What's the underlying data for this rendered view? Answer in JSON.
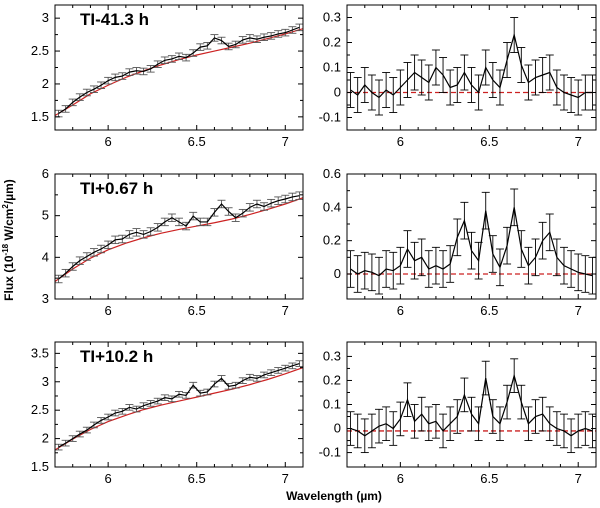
{
  "figure": {
    "xlabel": "Wavelength (µm)",
    "ylabel_prefix": "Flux (10",
    "ylabel_exp": "-18",
    "ylabel_mid": " W/cm",
    "ylabel_sq": "2",
    "ylabel_suffix": "/µm)"
  },
  "colors": {
    "data": "#000000",
    "errorbar": "#555555",
    "model": "#cc2222",
    "zero_line": "#cc2222"
  },
  "chart_data": [
    {
      "type": "line",
      "row": 0,
      "panel": "spectrum",
      "label": "TI-41.3 h",
      "xlim": [
        5.7,
        7.1
      ],
      "ylim": [
        1.3,
        3.2
      ],
      "xticks": [
        6,
        6.5,
        7
      ],
      "xtick_labels": [
        "6",
        "6.5",
        "7"
      ],
      "yticks": [
        1.5,
        2,
        2.5,
        3
      ],
      "ytick_labels": [
        "1.5",
        "2",
        "2.5",
        "3"
      ],
      "x": [
        5.72,
        5.76,
        5.8,
        5.84,
        5.88,
        5.92,
        5.96,
        6.0,
        6.04,
        6.08,
        6.12,
        6.16,
        6.2,
        6.24,
        6.28,
        6.32,
        6.36,
        6.4,
        6.44,
        6.48,
        6.52,
        6.56,
        6.6,
        6.64,
        6.68,
        6.72,
        6.76,
        6.8,
        6.84,
        6.88,
        6.92,
        6.96,
        7.0,
        7.04,
        7.08
      ],
      "y": [
        1.55,
        1.62,
        1.72,
        1.8,
        1.87,
        1.92,
        1.98,
        2.05,
        2.1,
        2.12,
        2.18,
        2.2,
        2.19,
        2.23,
        2.3,
        2.36,
        2.38,
        2.42,
        2.4,
        2.47,
        2.56,
        2.58,
        2.7,
        2.66,
        2.57,
        2.6,
        2.67,
        2.7,
        2.68,
        2.71,
        2.73,
        2.76,
        2.78,
        2.82,
        2.86
      ],
      "err": [
        0.05,
        0.05,
        0.05,
        0.05,
        0.05,
        0.05,
        0.05,
        0.05,
        0.05,
        0.05,
        0.05,
        0.05,
        0.05,
        0.05,
        0.05,
        0.05,
        0.05,
        0.05,
        0.05,
        0.05,
        0.05,
        0.05,
        0.05,
        0.05,
        0.05,
        0.05,
        0.05,
        0.05,
        0.05,
        0.05,
        0.05,
        0.05,
        0.05,
        0.05,
        0.05
      ],
      "model_x": [
        5.7,
        5.8,
        5.9,
        6.0,
        6.1,
        6.2,
        6.3,
        6.4,
        6.5,
        6.6,
        6.7,
        6.8,
        6.9,
        7.0,
        7.1
      ],
      "model_y": [
        1.52,
        1.68,
        1.85,
        1.98,
        2.1,
        2.2,
        2.29,
        2.37,
        2.44,
        2.5,
        2.56,
        2.62,
        2.69,
        2.76,
        2.84
      ]
    },
    {
      "type": "line",
      "row": 0,
      "panel": "residual",
      "xlim": [
        5.7,
        7.1
      ],
      "ylim": [
        -0.15,
        0.35
      ],
      "xticks": [
        6,
        6.5,
        7
      ],
      "xtick_labels": [
        "6",
        "6.5",
        "7"
      ],
      "yticks": [
        -0.1,
        0,
        0.1,
        0.2,
        0.3
      ],
      "ytick_labels": [
        "-0.1",
        "0",
        "0.1",
        "0.2",
        "0.3"
      ],
      "x": [
        5.72,
        5.76,
        5.8,
        5.84,
        5.88,
        5.92,
        5.96,
        6.0,
        6.04,
        6.08,
        6.12,
        6.16,
        6.2,
        6.24,
        6.28,
        6.32,
        6.36,
        6.4,
        6.44,
        6.48,
        6.52,
        6.56,
        6.6,
        6.64,
        6.68,
        6.72,
        6.76,
        6.8,
        6.84,
        6.88,
        6.92,
        6.96,
        7.0,
        7.04,
        7.08
      ],
      "y": [
        0.01,
        -0.01,
        0.03,
        0.0,
        -0.02,
        0.01,
        -0.01,
        0.02,
        0.05,
        0.08,
        0.06,
        0.04,
        0.1,
        0.07,
        0.02,
        0.03,
        0.08,
        0.03,
        0.0,
        0.1,
        0.05,
        0.02,
        0.13,
        0.23,
        0.11,
        0.04,
        0.06,
        0.07,
        0.08,
        0.02,
        0.0,
        -0.01,
        -0.02,
        0.0,
        0.0
      ],
      "err": [
        0.07,
        0.07,
        0.07,
        0.07,
        0.07,
        0.07,
        0.07,
        0.07,
        0.07,
        0.07,
        0.07,
        0.07,
        0.07,
        0.07,
        0.07,
        0.07,
        0.07,
        0.07,
        0.07,
        0.07,
        0.07,
        0.07,
        0.07,
        0.07,
        0.07,
        0.07,
        0.07,
        0.07,
        0.07,
        0.07,
        0.07,
        0.07,
        0.07,
        0.07,
        0.07
      ],
      "model_x": [
        5.7,
        7.1
      ],
      "model_y": [
        0,
        0
      ]
    },
    {
      "type": "line",
      "row": 1,
      "panel": "spectrum",
      "label": "TI+0.67 h",
      "xlim": [
        5.7,
        7.1
      ],
      "ylim": [
        3.0,
        6.0
      ],
      "xticks": [
        6,
        6.5,
        7
      ],
      "xtick_labels": [
        "6",
        "6.5",
        "7"
      ],
      "yticks": [
        3,
        4,
        5,
        6
      ],
      "ytick_labels": [
        "3",
        "4",
        "5",
        "6"
      ],
      "x": [
        5.72,
        5.76,
        5.8,
        5.84,
        5.88,
        5.92,
        5.96,
        6.0,
        6.04,
        6.08,
        6.12,
        6.16,
        6.2,
        6.24,
        6.28,
        6.32,
        6.36,
        6.4,
        6.44,
        6.48,
        6.52,
        6.56,
        6.6,
        6.64,
        6.68,
        6.72,
        6.76,
        6.8,
        6.84,
        6.88,
        6.92,
        6.96,
        7.0,
        7.04,
        7.08
      ],
      "y": [
        3.48,
        3.62,
        3.78,
        3.92,
        4.02,
        4.12,
        4.2,
        4.3,
        4.42,
        4.44,
        4.55,
        4.6,
        4.55,
        4.62,
        4.72,
        4.85,
        4.95,
        4.85,
        4.75,
        4.99,
        4.85,
        4.85,
        5.08,
        5.28,
        5.1,
        4.95,
        5.06,
        5.2,
        5.28,
        5.22,
        5.3,
        5.36,
        5.4,
        5.45,
        5.48
      ],
      "err": [
        0.09,
        0.09,
        0.09,
        0.09,
        0.09,
        0.09,
        0.09,
        0.09,
        0.09,
        0.09,
        0.09,
        0.09,
        0.09,
        0.09,
        0.09,
        0.09,
        0.09,
        0.09,
        0.09,
        0.09,
        0.09,
        0.09,
        0.09,
        0.09,
        0.09,
        0.09,
        0.09,
        0.09,
        0.09,
        0.09,
        0.09,
        0.09,
        0.09,
        0.09,
        0.09
      ],
      "model_x": [
        5.7,
        5.8,
        5.9,
        6.0,
        6.1,
        6.2,
        6.3,
        6.4,
        6.5,
        6.6,
        6.7,
        6.8,
        6.9,
        7.0,
        7.1
      ],
      "model_y": [
        3.42,
        3.72,
        3.98,
        4.18,
        4.34,
        4.47,
        4.58,
        4.67,
        4.75,
        4.83,
        4.92,
        5.03,
        5.15,
        5.28,
        5.43
      ]
    },
    {
      "type": "line",
      "row": 1,
      "panel": "residual",
      "xlim": [
        5.7,
        7.1
      ],
      "ylim": [
        -0.15,
        0.6
      ],
      "xticks": [
        6,
        6.5,
        7
      ],
      "xtick_labels": [
        "6",
        "6.5",
        "7"
      ],
      "yticks": [
        0,
        0.2,
        0.4,
        0.6
      ],
      "ytick_labels": [
        "0",
        "0.2",
        "0.4",
        "0.6"
      ],
      "x": [
        5.72,
        5.76,
        5.8,
        5.84,
        5.88,
        5.92,
        5.96,
        6.0,
        6.04,
        6.08,
        6.12,
        6.16,
        6.2,
        6.24,
        6.28,
        6.32,
        6.36,
        6.4,
        6.44,
        6.48,
        6.52,
        6.56,
        6.6,
        6.64,
        6.68,
        6.72,
        6.76,
        6.8,
        6.84,
        6.88,
        6.92,
        6.96,
        7.0,
        7.04,
        7.08
      ],
      "y": [
        0.03,
        0.0,
        0.02,
        0.01,
        -0.01,
        0.03,
        0.02,
        0.05,
        0.15,
        0.08,
        0.1,
        0.03,
        0.05,
        0.03,
        0.06,
        0.22,
        0.32,
        0.14,
        0.08,
        0.38,
        0.12,
        0.04,
        0.17,
        0.4,
        0.15,
        0.05,
        0.1,
        0.2,
        0.25,
        0.1,
        0.05,
        0.03,
        0.01,
        0.0,
        -0.01
      ],
      "err": [
        0.11,
        0.11,
        0.11,
        0.11,
        0.11,
        0.11,
        0.11,
        0.11,
        0.11,
        0.11,
        0.11,
        0.11,
        0.11,
        0.11,
        0.11,
        0.11,
        0.11,
        0.11,
        0.11,
        0.11,
        0.11,
        0.11,
        0.11,
        0.11,
        0.11,
        0.11,
        0.11,
        0.11,
        0.11,
        0.11,
        0.11,
        0.11,
        0.11,
        0.11,
        0.11
      ],
      "model_x": [
        5.7,
        7.1
      ],
      "model_y": [
        0,
        0
      ]
    },
    {
      "type": "line",
      "row": 2,
      "panel": "spectrum",
      "label": "TI+10.2 h",
      "xlim": [
        5.7,
        7.1
      ],
      "ylim": [
        1.5,
        3.7
      ],
      "xticks": [
        6,
        6.5,
        7
      ],
      "xtick_labels": [
        "6",
        "6.5",
        "7"
      ],
      "yticks": [
        1.5,
        2,
        2.5,
        3,
        3.5
      ],
      "ytick_labels": [
        "1.5",
        "2",
        "2.5",
        "3",
        "3.5"
      ],
      "x": [
        5.72,
        5.76,
        5.8,
        5.84,
        5.88,
        5.92,
        5.96,
        6.0,
        6.04,
        6.08,
        6.12,
        6.16,
        6.2,
        6.24,
        6.28,
        6.32,
        6.36,
        6.4,
        6.44,
        6.48,
        6.52,
        6.56,
        6.6,
        6.64,
        6.68,
        6.72,
        6.76,
        6.8,
        6.84,
        6.88,
        6.92,
        6.96,
        7.0,
        7.04,
        7.08
      ],
      "y": [
        1.85,
        1.92,
        2.0,
        2.08,
        2.15,
        2.24,
        2.32,
        2.38,
        2.45,
        2.48,
        2.55,
        2.52,
        2.58,
        2.62,
        2.66,
        2.72,
        2.7,
        2.78,
        2.76,
        2.94,
        2.8,
        2.82,
        2.96,
        3.06,
        2.92,
        2.94,
        3.02,
        3.08,
        3.06,
        3.12,
        3.16,
        3.2,
        3.24,
        3.28,
        3.32
      ],
      "err": [
        0.05,
        0.05,
        0.05,
        0.05,
        0.05,
        0.05,
        0.05,
        0.05,
        0.05,
        0.05,
        0.05,
        0.05,
        0.05,
        0.05,
        0.05,
        0.05,
        0.05,
        0.05,
        0.05,
        0.05,
        0.05,
        0.05,
        0.05,
        0.05,
        0.05,
        0.05,
        0.05,
        0.05,
        0.05,
        0.05,
        0.05,
        0.05,
        0.05,
        0.05,
        0.05
      ],
      "model_x": [
        5.7,
        5.8,
        5.9,
        6.0,
        6.1,
        6.2,
        6.3,
        6.4,
        6.5,
        6.6,
        6.7,
        6.8,
        6.9,
        7.0,
        7.1
      ],
      "model_y": [
        1.8,
        1.99,
        2.16,
        2.3,
        2.41,
        2.51,
        2.59,
        2.66,
        2.73,
        2.8,
        2.87,
        2.95,
        3.04,
        3.14,
        3.25
      ]
    },
    {
      "type": "line",
      "row": 2,
      "panel": "residual",
      "xlim": [
        5.7,
        7.1
      ],
      "ylim": [
        -0.16,
        0.36
      ],
      "xticks": [
        6,
        6.5,
        7
      ],
      "xtick_labels": [
        "6",
        "6.5",
        "7"
      ],
      "yticks": [
        -0.1,
        0,
        0.1,
        0.2,
        0.3
      ],
      "ytick_labels": [
        "-0.1",
        "0",
        "0.1",
        "0.2",
        "0.3"
      ],
      "x": [
        5.72,
        5.76,
        5.8,
        5.84,
        5.88,
        5.92,
        5.96,
        6.0,
        6.04,
        6.08,
        6.12,
        6.16,
        6.2,
        6.24,
        6.28,
        6.32,
        6.36,
        6.4,
        6.44,
        6.48,
        6.52,
        6.56,
        6.6,
        6.64,
        6.68,
        6.72,
        6.76,
        6.8,
        6.84,
        6.88,
        6.92,
        6.96,
        7.0,
        7.04,
        7.08
      ],
      "y": [
        0.0,
        -0.01,
        -0.03,
        -0.01,
        0.01,
        0.02,
        0.0,
        0.04,
        0.12,
        0.03,
        0.06,
        0.02,
        0.03,
        -0.01,
        0.02,
        0.05,
        0.14,
        0.06,
        0.02,
        0.21,
        0.05,
        0.02,
        0.11,
        0.22,
        0.11,
        0.02,
        0.05,
        0.06,
        0.02,
        0.0,
        -0.01,
        -0.03,
        -0.01,
        0.0,
        -0.01
      ],
      "err": [
        0.07,
        0.07,
        0.07,
        0.07,
        0.07,
        0.07,
        0.07,
        0.07,
        0.07,
        0.07,
        0.07,
        0.07,
        0.07,
        0.07,
        0.07,
        0.07,
        0.07,
        0.07,
        0.07,
        0.07,
        0.07,
        0.07,
        0.07,
        0.07,
        0.07,
        0.07,
        0.07,
        0.07,
        0.07,
        0.07,
        0.07,
        0.07,
        0.07,
        0.07,
        0.07
      ],
      "model_x": [
        5.7,
        7.1
      ],
      "model_y": [
        -0.01,
        -0.01
      ]
    }
  ]
}
